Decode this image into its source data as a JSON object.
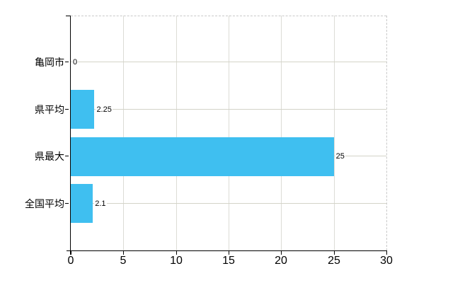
{
  "chart_data": {
    "type": "bar",
    "orientation": "horizontal",
    "title": "",
    "categories": [
      "亀岡市",
      "県平均",
      "県最大",
      "全国平均"
    ],
    "values": [
      0,
      2.25,
      25,
      2.1
    ],
    "value_labels": [
      "0",
      "2.25",
      "25",
      "2.1"
    ],
    "xlim": [
      0,
      30
    ],
    "x_ticks": [
      0,
      5,
      10,
      15,
      20,
      25,
      30
    ],
    "x_tick_labels": [
      "0",
      "5",
      "10",
      "15",
      "20",
      "25",
      "30"
    ],
    "grid": true,
    "legend": false,
    "colors": {
      "bar": "#3FBFF0",
      "axis": "#000000",
      "grid_horizontal": "#d3d3c8",
      "grid_vertical": "#dcdcd6",
      "plot_border_dashed": "#c9c9c9",
      "background": "#ffffff",
      "text": "#000000"
    }
  }
}
